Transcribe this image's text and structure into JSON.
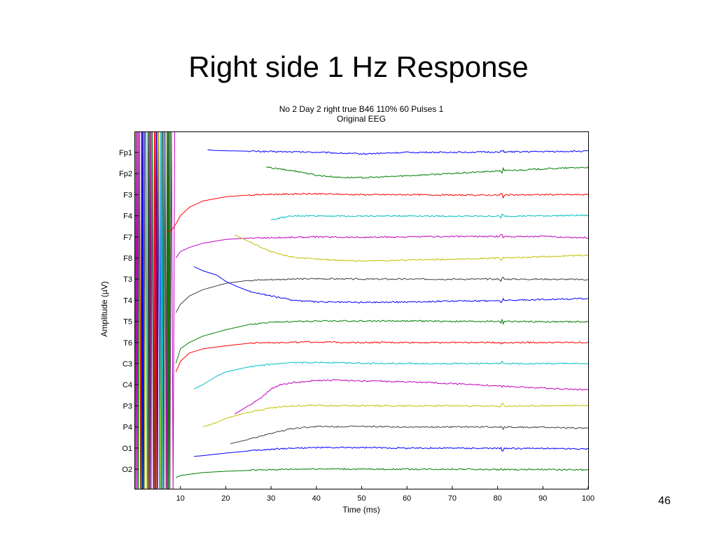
{
  "slide": {
    "title": "Right side 1 Hz Response",
    "page_number": "46"
  },
  "chart_data": {
    "type": "line",
    "title": "No 2 Day 2 right true B46 110% 60 Pulses 1",
    "subtitle": "Original EEG",
    "xlabel": "Time (ms)",
    "ylabel": "Amplitude (µV)",
    "xlim": [
      0,
      100
    ],
    "xticks": [
      10,
      20,
      30,
      40,
      50,
      60,
      70,
      80,
      90,
      100
    ],
    "grid": false,
    "channels": [
      "Fp1",
      "Fp2",
      "F3",
      "F4",
      "F7",
      "F8",
      "T3",
      "T4",
      "T5",
      "T6",
      "C3",
      "C4",
      "P3",
      "P4",
      "O1",
      "O2"
    ],
    "series": [
      {
        "color": "#0000ff",
        "points": [
          [
            16,
            0.6
          ],
          [
            18,
            0.45
          ],
          [
            20,
            0.4
          ],
          [
            25,
            0.3
          ],
          [
            30,
            0.2
          ],
          [
            40,
            0.05
          ],
          [
            50,
            -0.35
          ],
          [
            60,
            0.0
          ],
          [
            70,
            0.05
          ],
          [
            80,
            0.1
          ],
          [
            90,
            0.2
          ],
          [
            100,
            0.3
          ]
        ]
      },
      {
        "color": "#007f00",
        "points": [
          [
            29,
            1.5
          ],
          [
            31,
            1.2
          ],
          [
            33,
            0.9
          ],
          [
            36,
            0.5
          ],
          [
            40,
            -0.4
          ],
          [
            45,
            -0.9
          ],
          [
            50,
            -1.0
          ],
          [
            55,
            -0.8
          ],
          [
            60,
            -0.5
          ],
          [
            70,
            0.0
          ],
          [
            80,
            0.6
          ],
          [
            90,
            1.1
          ],
          [
            100,
            1.5
          ]
        ]
      },
      {
        "color": "#ff0000",
        "points": [
          [
            7,
            -9.0
          ],
          [
            8,
            -8.5
          ],
          [
            9,
            -7.0
          ],
          [
            10,
            -5.0
          ],
          [
            12,
            -3.0
          ],
          [
            15,
            -1.5
          ],
          [
            20,
            -0.5
          ],
          [
            25,
            -0.1
          ],
          [
            30,
            0.1
          ],
          [
            40,
            0.2
          ],
          [
            50,
            0.0
          ],
          [
            60,
            0.0
          ],
          [
            70,
            -0.1
          ],
          [
            80,
            -0.1
          ],
          [
            90,
            0.0
          ],
          [
            100,
            0.0
          ]
        ]
      },
      {
        "color": "#00bfbf",
        "points": [
          [
            30,
            -1.0
          ],
          [
            33,
            -0.3
          ],
          [
            36,
            0.0
          ],
          [
            40,
            0.0
          ],
          [
            50,
            -0.1
          ],
          [
            60,
            0.0
          ],
          [
            70,
            -0.1
          ],
          [
            80,
            -0.1
          ],
          [
            90,
            0.0
          ],
          [
            100,
            0.1
          ]
        ]
      },
      {
        "color": "#bf00bf",
        "points": [
          [
            9,
            -5.0
          ],
          [
            10,
            -3.5
          ],
          [
            12,
            -2.5
          ],
          [
            15,
            -1.5
          ],
          [
            20,
            -0.6
          ],
          [
            25,
            -0.3
          ],
          [
            30,
            -0.2
          ],
          [
            40,
            0.0
          ],
          [
            50,
            -0.1
          ],
          [
            60,
            0.0
          ],
          [
            70,
            0.1
          ],
          [
            80,
            0.1
          ],
          [
            90,
            0.1
          ],
          [
            100,
            -0.2
          ]
        ]
      },
      {
        "color": "#bfbf00",
        "points": [
          [
            22,
            5.5
          ],
          [
            24,
            4.5
          ],
          [
            26,
            3.5
          ],
          [
            28,
            2.5
          ],
          [
            30,
            1.5
          ],
          [
            33,
            0.6
          ],
          [
            36,
            0.1
          ],
          [
            40,
            -0.3
          ],
          [
            50,
            -0.7
          ],
          [
            60,
            -0.5
          ],
          [
            70,
            -0.3
          ],
          [
            80,
            0.0
          ],
          [
            90,
            0.3
          ],
          [
            100,
            0.7
          ]
        ]
      },
      {
        "color": "#3f3f3f",
        "points": [
          [
            9,
            -8.0
          ],
          [
            10,
            -6.0
          ],
          [
            12,
            -4.0
          ],
          [
            15,
            -2.5
          ],
          [
            20,
            -1.0
          ],
          [
            25,
            -0.3
          ],
          [
            30,
            -0.1
          ],
          [
            40,
            0.1
          ],
          [
            50,
            0.0
          ],
          [
            60,
            0.0
          ],
          [
            70,
            0.0
          ],
          [
            80,
            0.0
          ],
          [
            90,
            0.0
          ],
          [
            100,
            -0.1
          ]
        ]
      },
      {
        "color": "#0000ff",
        "points": [
          [
            13,
            8.0
          ],
          [
            15,
            7.0
          ],
          [
            18,
            6.0
          ],
          [
            20,
            4.5
          ],
          [
            22,
            3.5
          ],
          [
            25,
            2.2
          ],
          [
            30,
            1.0
          ],
          [
            35,
            0.0
          ],
          [
            40,
            -0.4
          ],
          [
            50,
            -0.5
          ],
          [
            60,
            -0.4
          ],
          [
            70,
            -0.2
          ],
          [
            80,
            -0.1
          ],
          [
            90,
            0.2
          ],
          [
            100,
            0.4
          ]
        ]
      },
      {
        "color": "#007f00",
        "points": [
          [
            9,
            -10.0
          ],
          [
            10,
            -6.5
          ],
          [
            12,
            -5.0
          ],
          [
            15,
            -3.5
          ],
          [
            20,
            -2.0
          ],
          [
            25,
            -0.8
          ],
          [
            30,
            -0.2
          ],
          [
            40,
            0.1
          ],
          [
            50,
            0.1
          ],
          [
            60,
            0.1
          ],
          [
            70,
            0.0
          ],
          [
            80,
            0.0
          ],
          [
            90,
            -0.1
          ],
          [
            100,
            -0.1
          ]
        ]
      },
      {
        "color": "#ff0000",
        "points": [
          [
            9,
            -7.0
          ],
          [
            10,
            -4.5
          ],
          [
            12,
            -2.5
          ],
          [
            15,
            -1.5
          ],
          [
            20,
            -0.8
          ],
          [
            25,
            -0.2
          ],
          [
            30,
            0.0
          ],
          [
            40,
            0.1
          ],
          [
            50,
            0.0
          ],
          [
            60,
            0.0
          ],
          [
            70,
            0.0
          ],
          [
            80,
            0.0
          ],
          [
            90,
            0.0
          ],
          [
            100,
            0.0
          ]
        ]
      },
      {
        "color": "#00bfbf",
        "points": [
          [
            13,
            -6.0
          ],
          [
            15,
            -5.0
          ],
          [
            18,
            -3.0
          ],
          [
            20,
            -2.0
          ],
          [
            25,
            -0.8
          ],
          [
            30,
            -0.2
          ],
          [
            35,
            0.2
          ],
          [
            40,
            0.3
          ],
          [
            50,
            0.1
          ],
          [
            60,
            0.0
          ],
          [
            70,
            0.0
          ],
          [
            80,
            0.0
          ],
          [
            90,
            0.0
          ],
          [
            100,
            0.0
          ]
        ]
      },
      {
        "color": "#bf00bf",
        "points": [
          [
            22,
            -7.0
          ],
          [
            25,
            -5.0
          ],
          [
            28,
            -3.0
          ],
          [
            30,
            -1.0
          ],
          [
            32,
            0.0
          ],
          [
            35,
            0.5
          ],
          [
            40,
            1.0
          ],
          [
            45,
            1.1
          ],
          [
            50,
            0.9
          ],
          [
            60,
            0.7
          ],
          [
            70,
            0.3
          ],
          [
            80,
            -0.3
          ],
          [
            90,
            -0.8
          ],
          [
            100,
            -1.2
          ]
        ]
      },
      {
        "color": "#bfbf00",
        "points": [
          [
            15,
            -5.0
          ],
          [
            18,
            -4.0
          ],
          [
            20,
            -3.0
          ],
          [
            25,
            -1.5
          ],
          [
            30,
            -0.5
          ],
          [
            35,
            0.0
          ],
          [
            40,
            0.1
          ],
          [
            50,
            0.0
          ],
          [
            60,
            0.0
          ],
          [
            70,
            0.0
          ],
          [
            80,
            -0.1
          ],
          [
            90,
            0.0
          ],
          [
            100,
            0.1
          ]
        ]
      },
      {
        "color": "#3f3f3f",
        "points": [
          [
            21,
            -4.0
          ],
          [
            25,
            -3.0
          ],
          [
            30,
            -1.5
          ],
          [
            35,
            -0.3
          ],
          [
            40,
            0.1
          ],
          [
            50,
            0.1
          ],
          [
            60,
            0.0
          ],
          [
            70,
            0.0
          ],
          [
            80,
            0.0
          ],
          [
            90,
            -0.1
          ],
          [
            100,
            -0.3
          ]
        ]
      },
      {
        "color": "#0000ff",
        "points": [
          [
            13,
            -2.0
          ],
          [
            15,
            -1.8
          ],
          [
            20,
            -1.2
          ],
          [
            25,
            -0.7
          ],
          [
            30,
            -0.3
          ],
          [
            35,
            0.0
          ],
          [
            40,
            0.1
          ],
          [
            50,
            0.1
          ],
          [
            60,
            0.0
          ],
          [
            70,
            0.0
          ],
          [
            80,
            -0.1
          ],
          [
            90,
            -0.1
          ],
          [
            100,
            -0.2
          ]
        ]
      },
      {
        "color": "#007f00",
        "points": [
          [
            9,
            -2.0
          ],
          [
            10,
            -1.5
          ],
          [
            15,
            -0.8
          ],
          [
            20,
            -0.5
          ],
          [
            25,
            -0.3
          ],
          [
            30,
            -0.1
          ],
          [
            40,
            0.1
          ],
          [
            50,
            0.0
          ],
          [
            60,
            0.0
          ],
          [
            70,
            0.0
          ],
          [
            80,
            -0.1
          ],
          [
            90,
            -0.1
          ],
          [
            100,
            -0.2
          ]
        ]
      }
    ],
    "artifact_lines": {
      "colors": [
        "#bf00bf",
        "#007f00",
        "#ff0000",
        "#0000ff",
        "#bfbf00",
        "#00bfbf",
        "#3f3f3f"
      ],
      "x_start": 0,
      "x_end": 10
    }
  }
}
